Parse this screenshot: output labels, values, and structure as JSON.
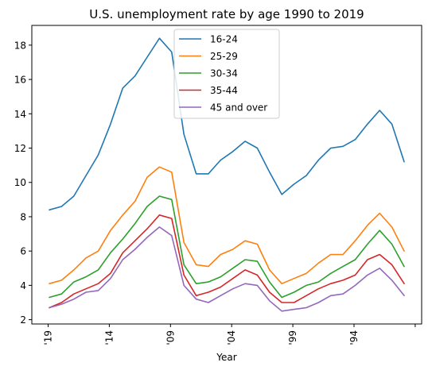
{
  "chart_data": {
    "type": "line",
    "title": "U.S. unemployment rate by age 1990 to 2019",
    "xlabel": "Year",
    "ylabel": "",
    "x_ticks": [
      "'19",
      "'14",
      "'09",
      "'04",
      "'99",
      "'94",
      ""
    ],
    "ylim": [
      1.75,
      19.15
    ],
    "y_ticks": [
      2,
      4,
      6,
      8,
      10,
      12,
      14,
      16,
      18
    ],
    "grid": false,
    "legend_position": "upper-center",
    "n_points": 30,
    "series": [
      {
        "name": "16-24",
        "color": "#1f77b4",
        "values": [
          8.4,
          8.6,
          9.2,
          10.4,
          11.6,
          13.4,
          15.5,
          16.2,
          17.3,
          18.4,
          17.6,
          12.8,
          10.5,
          10.5,
          11.3,
          11.8,
          12.4,
          12.0,
          10.6,
          9.3,
          9.9,
          10.4,
          11.3,
          12.0,
          12.1,
          12.5,
          13.4,
          14.2,
          13.4,
          11.2
        ]
      },
      {
        "name": "25-29",
        "color": "#ff7f0e",
        "values": [
          4.1,
          4.3,
          4.9,
          5.6,
          6.0,
          7.2,
          8.1,
          8.9,
          10.3,
          10.9,
          10.6,
          6.5,
          5.2,
          5.1,
          5.8,
          6.1,
          6.6,
          6.4,
          4.9,
          4.1,
          4.4,
          4.7,
          5.3,
          5.8,
          5.8,
          6.6,
          7.5,
          8.2,
          7.4,
          6.0
        ]
      },
      {
        "name": "30-34",
        "color": "#2ca02c",
        "values": [
          3.3,
          3.5,
          4.2,
          4.5,
          4.9,
          5.9,
          6.7,
          7.6,
          8.6,
          9.2,
          9.0,
          5.2,
          4.1,
          4.2,
          4.5,
          5.0,
          5.5,
          5.4,
          4.2,
          3.3,
          3.6,
          4.0,
          4.2,
          4.7,
          5.1,
          5.5,
          6.4,
          7.2,
          6.4,
          5.1
        ]
      },
      {
        "name": "35-44",
        "color": "#d62728",
        "values": [
          2.7,
          3.0,
          3.5,
          3.8,
          4.1,
          4.7,
          5.9,
          6.6,
          7.3,
          8.1,
          7.9,
          4.6,
          3.4,
          3.6,
          3.9,
          4.4,
          4.9,
          4.6,
          3.6,
          3.0,
          3.0,
          3.4,
          3.8,
          4.1,
          4.3,
          4.6,
          5.5,
          5.8,
          5.2,
          4.1
        ]
      },
      {
        "name": "45 and over",
        "color": "#9467bd",
        "values": [
          2.7,
          2.9,
          3.2,
          3.6,
          3.7,
          4.4,
          5.5,
          6.1,
          6.8,
          7.4,
          6.9,
          4.0,
          3.2,
          3.0,
          3.4,
          3.8,
          4.1,
          4.0,
          3.1,
          2.5,
          2.6,
          2.7,
          3.0,
          3.4,
          3.5,
          4.0,
          4.6,
          5.0,
          4.3,
          3.4
        ]
      }
    ]
  }
}
